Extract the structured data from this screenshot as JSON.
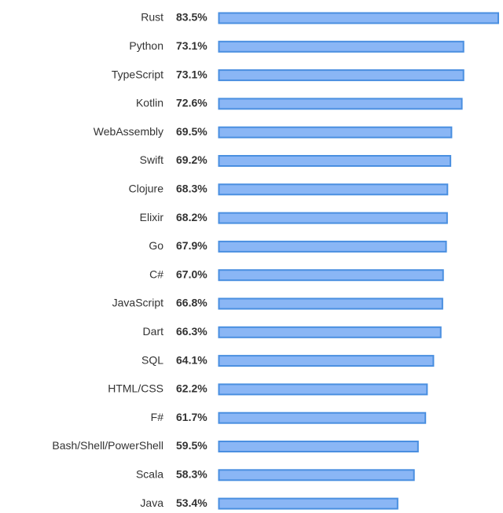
{
  "chart_data": {
    "type": "bar",
    "orientation": "horizontal",
    "categories": [
      "Rust",
      "Python",
      "TypeScript",
      "Kotlin",
      "WebAssembly",
      "Swift",
      "Clojure",
      "Elixir",
      "Go",
      "C#",
      "JavaScript",
      "Dart",
      "SQL",
      "HTML/CSS",
      "F#",
      "Bash/Shell/PowerShell",
      "Scala",
      "Java"
    ],
    "values": [
      83.5,
      73.1,
      73.1,
      72.6,
      69.5,
      69.2,
      68.3,
      68.2,
      67.9,
      67.0,
      66.8,
      66.3,
      64.1,
      62.2,
      61.7,
      59.5,
      58.3,
      53.4
    ],
    "value_labels": [
      "83.5%",
      "73.1%",
      "73.1%",
      "72.6%",
      "69.5%",
      "69.2%",
      "68.3%",
      "68.2%",
      "67.9%",
      "67.0%",
      "66.8%",
      "66.3%",
      "64.1%",
      "62.2%",
      "61.7%",
      "59.5%",
      "58.3%",
      "53.4%"
    ],
    "color": "#8ab6f5",
    "edge_color": "#4a8fe0"
  }
}
